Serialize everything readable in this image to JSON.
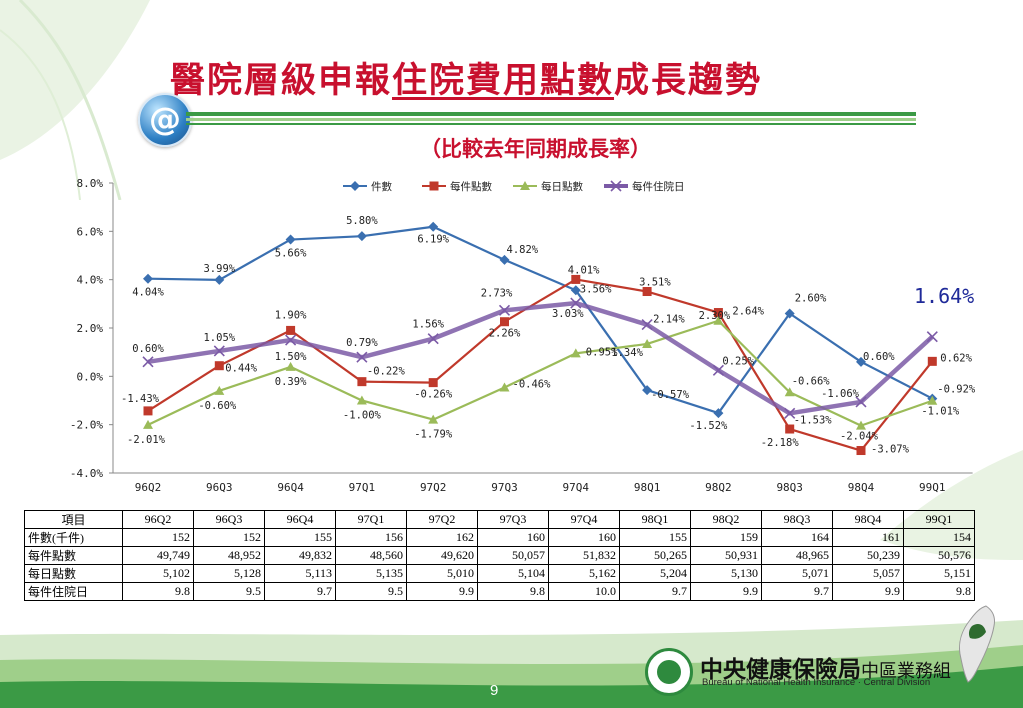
{
  "header": {
    "title_part1": "醫院層級申報",
    "title_part2": "住院費用點數",
    "title_part3": "成長趨勢",
    "subtitle": "（比較去年同期成長率）",
    "at_symbol": "@"
  },
  "callout": "1.64%",
  "colors": {
    "title": "#c8102e",
    "series": [
      "#3a6fb0",
      "#c0392b",
      "#9bbb59",
      "#7b5aa6"
    ]
  },
  "chart_data": {
    "type": "line",
    "categories": [
      "96Q2",
      "96Q3",
      "96Q4",
      "97Q1",
      "97Q2",
      "97Q3",
      "97Q4",
      "98Q1",
      "98Q2",
      "98Q3",
      "98Q4",
      "99Q1"
    ],
    "ylim": [
      -4.0,
      8.0
    ],
    "yticks": [
      "8.0%",
      "6.0%",
      "4.0%",
      "2.0%",
      "0.0%",
      "-2.0%",
      "-4.0%"
    ],
    "legend_position": "top",
    "grid": false,
    "series": [
      {
        "name": "件數",
        "marker": "diamond",
        "values": [
          4.04,
          3.99,
          5.66,
          5.8,
          6.19,
          4.82,
          3.56,
          -0.57,
          -1.52,
          2.6,
          0.6,
          -0.92
        ],
        "labels": [
          "4.04%",
          "3.99%",
          "5.66%",
          "5.80%",
          "6.19%",
          "4.82%",
          "3.56%",
          "-0.57%",
          "-1.52%",
          "2.60%",
          "0.60%",
          "-0.92%"
        ]
      },
      {
        "name": "每件點數",
        "marker": "square",
        "values": [
          -1.43,
          0.44,
          1.9,
          -0.22,
          -0.26,
          2.26,
          4.01,
          3.51,
          2.64,
          -2.18,
          -3.07,
          0.62
        ],
        "labels": [
          "-1.43%",
          "0.44%",
          "1.90%",
          "-0.22%",
          "-0.26%",
          "2.26%",
          "4.01%",
          "3.51%",
          "2.64%",
          "-2.18%",
          "-3.07%",
          "0.62%"
        ]
      },
      {
        "name": "每日點數",
        "marker": "triangle",
        "values": [
          -2.01,
          -0.6,
          0.39,
          -1.0,
          -1.79,
          -0.46,
          0.95,
          1.34,
          2.3,
          -0.66,
          -2.04,
          -1.01
        ],
        "labels": [
          "-2.01%",
          "-0.60%",
          "0.39%",
          "-1.00%",
          "-1.79%",
          "-0.46%",
          "0.95%",
          "1.34%",
          "2.30%",
          "-0.66%",
          "-2.04%",
          "-1.01%"
        ]
      },
      {
        "name": "每件住院日",
        "marker": "x",
        "values": [
          0.6,
          1.05,
          1.5,
          0.79,
          1.56,
          2.73,
          3.03,
          2.14,
          0.25,
          -1.53,
          -1.06,
          1.64
        ],
        "labels": [
          "0.60%",
          "1.05%",
          "1.50%",
          "0.79%",
          "1.56%",
          "2.73%",
          "3.03%",
          "2.14%",
          "0.25%",
          "-1.53%",
          "-1.06%",
          ""
        ]
      }
    ]
  },
  "table": {
    "header_label": "項目",
    "columns": [
      "96Q2",
      "96Q3",
      "96Q4",
      "97Q1",
      "97Q2",
      "97Q3",
      "97Q4",
      "98Q1",
      "98Q2",
      "98Q3",
      "98Q4",
      "99Q1"
    ],
    "rows": [
      {
        "label": "件數(千件)",
        "values": [
          "152",
          "152",
          "155",
          "156",
          "162",
          "160",
          "160",
          "155",
          "159",
          "164",
          "161",
          "154"
        ]
      },
      {
        "label": "每件點數",
        "values": [
          "49,749",
          "48,952",
          "49,832",
          "48,560",
          "49,620",
          "50,057",
          "51,832",
          "50,265",
          "50,931",
          "48,965",
          "50,239",
          "50,576"
        ]
      },
      {
        "label": "每日點數",
        "values": [
          "5,102",
          "5,128",
          "5,113",
          "5,135",
          "5,010",
          "5,104",
          "5,162",
          "5,204",
          "5,130",
          "5,071",
          "5,057",
          "5,151"
        ]
      },
      {
        "label": "每件住院日",
        "values": [
          "9.8",
          "9.5",
          "9.7",
          "9.5",
          "9.9",
          "9.8",
          "10.0",
          "9.7",
          "9.9",
          "9.7",
          "9.9",
          "9.8"
        ]
      }
    ]
  },
  "footer": {
    "page_number": "9",
    "org_name": "中央健康保險局",
    "division": "中區業務組",
    "org_english": "Bureau of National Health Insurance · Central Division"
  }
}
